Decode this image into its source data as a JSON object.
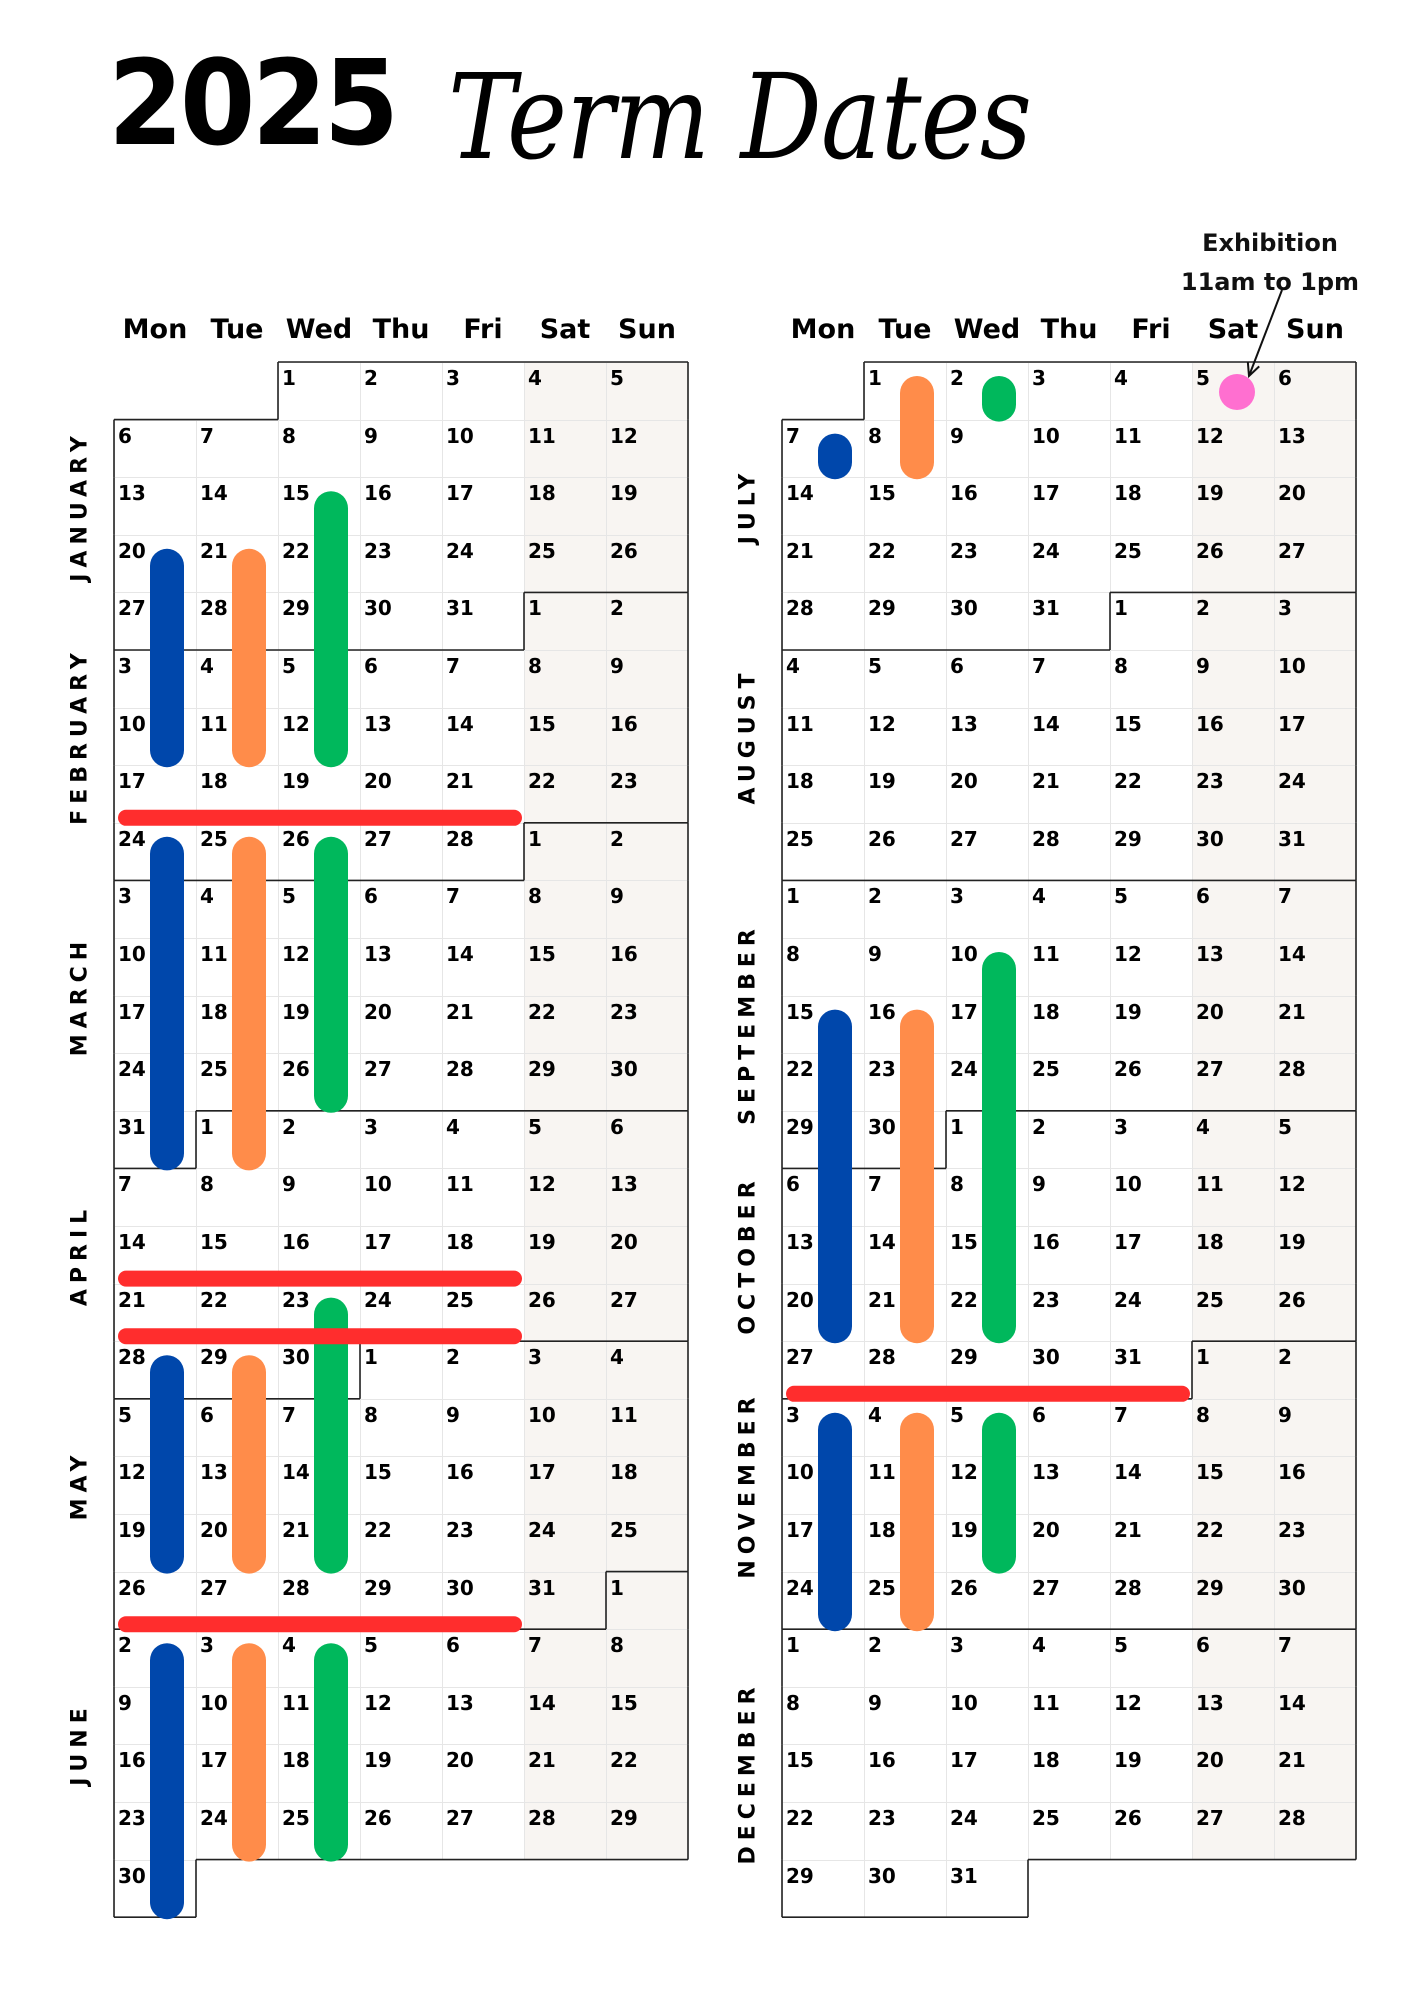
{
  "title": {
    "year": "2025",
    "text": "Term Dates"
  },
  "weekdays": [
    "Mon",
    "Tue",
    "Wed",
    "Thu",
    "Fri",
    "Sat",
    "Sun"
  ],
  "annotation": {
    "line1": "Exhibition",
    "line2": "11am to 1pm",
    "date": "2025-07-05"
  },
  "colors": {
    "blue": "#0047ab",
    "orange": "#ff8c4a",
    "green": "#00b85c",
    "red": "#ff2d2d",
    "pink": "#ff6fd0",
    "weekend": "#f8f5f2",
    "gridline": "#e6e6e6",
    "border": "#222222"
  },
  "columns": [
    {
      "months": [
        "JANUARY",
        "FEBRUARY",
        "MARCH",
        "APRIL",
        "MAY",
        "JUNE"
      ]
    },
    {
      "months": [
        "JULY",
        "AUGUST",
        "SEPTEMBER",
        "OCTOBER",
        "NOVEMBER",
        "DECEMBER"
      ]
    }
  ],
  "blocks": [
    {
      "day": "Mon",
      "color": "blue",
      "start": "2025-01-20",
      "end": "2025-02-10"
    },
    {
      "day": "Tue",
      "color": "orange",
      "start": "2025-01-21",
      "end": "2025-02-11"
    },
    {
      "day": "Wed",
      "color": "green",
      "start": "2025-01-15",
      "end": "2025-02-12"
    },
    {
      "day": "Mon",
      "color": "blue",
      "start": "2025-02-24",
      "end": "2025-03-31"
    },
    {
      "day": "Tue",
      "color": "orange",
      "start": "2025-02-25",
      "end": "2025-04-01"
    },
    {
      "day": "Wed",
      "color": "green",
      "start": "2025-02-26",
      "end": "2025-03-26"
    },
    {
      "day": "Wed",
      "color": "green",
      "start": "2025-04-23",
      "end": "2025-05-21"
    },
    {
      "day": "Mon",
      "color": "blue",
      "start": "2025-04-28",
      "end": "2025-05-19"
    },
    {
      "day": "Tue",
      "color": "orange",
      "start": "2025-04-29",
      "end": "2025-05-20"
    },
    {
      "day": "Mon",
      "color": "blue",
      "start": "2025-06-02",
      "end": "2025-06-30"
    },
    {
      "day": "Tue",
      "color": "orange",
      "start": "2025-06-03",
      "end": "2025-06-24"
    },
    {
      "day": "Wed",
      "color": "green",
      "start": "2025-06-04",
      "end": "2025-06-25"
    },
    {
      "day": "Mon",
      "color": "blue",
      "start": "2025-07-07",
      "end": "2025-07-07"
    },
    {
      "day": "Tue",
      "color": "orange",
      "start": "2025-07-01",
      "end": "2025-07-08"
    },
    {
      "day": "Wed",
      "color": "green",
      "start": "2025-07-02",
      "end": "2025-07-02"
    },
    {
      "day": "Mon",
      "color": "blue",
      "start": "2025-09-15",
      "end": "2025-10-20"
    },
    {
      "day": "Tue",
      "color": "orange",
      "start": "2025-09-16",
      "end": "2025-10-21"
    },
    {
      "day": "Wed",
      "color": "green",
      "start": "2025-09-10",
      "end": "2025-10-22"
    },
    {
      "day": "Mon",
      "color": "blue",
      "start": "2025-11-03",
      "end": "2025-11-24"
    },
    {
      "day": "Tue",
      "color": "orange",
      "start": "2025-11-04",
      "end": "2025-11-25"
    },
    {
      "day": "Wed",
      "color": "green",
      "start": "2025-11-05",
      "end": "2025-11-19"
    }
  ],
  "breaks": [
    {
      "color": "red",
      "start": "2025-02-17",
      "end": "2025-02-21"
    },
    {
      "color": "red",
      "start": "2025-04-14",
      "end": "2025-04-18"
    },
    {
      "color": "red",
      "start": "2025-04-21",
      "end": "2025-04-25"
    },
    {
      "color": "red",
      "start": "2025-05-26",
      "end": "2025-05-30"
    },
    {
      "color": "red",
      "start": "2025-10-27",
      "end": "2025-10-31"
    }
  ]
}
